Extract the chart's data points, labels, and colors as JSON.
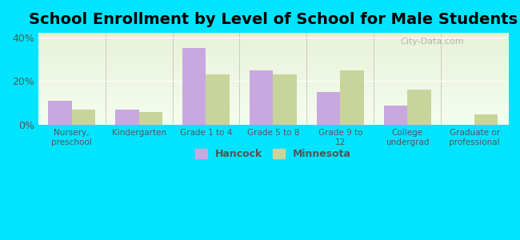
{
  "title": "School Enrollment by Level of School for Male Students",
  "categories": [
    "Nursery,\npreschool",
    "Kindergarten",
    "Grade 1 to 4",
    "Grade 5 to 8",
    "Grade 9 to\n12",
    "College\nundergrad",
    "Graduate or\nprofessional"
  ],
  "hancock": [
    11,
    7,
    35,
    25,
    15,
    9,
    0
  ],
  "minnesota": [
    7,
    6,
    23,
    23,
    25,
    16,
    5
  ],
  "hancock_color": "#c9a8e0",
  "minnesota_color": "#c8d49a",
  "background_color": "#00e5ff",
  "ylim": [
    0,
    42
  ],
  "yticks": [
    0,
    20,
    40
  ],
  "ytick_labels": [
    "0%",
    "20%",
    "40%"
  ],
  "bar_width": 0.35,
  "title_fontsize": 14,
  "legend_labels": [
    "Hancock",
    "Minnesota"
  ]
}
